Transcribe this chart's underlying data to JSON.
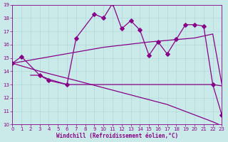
{
  "background_color": "#caeaea",
  "line_color": "#880088",
  "grid_color": "#b0d8d8",
  "xlabel": "Windchill (Refroidissement éolien,°C)",
  "tick_color": "#880088",
  "xlim": [
    0,
    23
  ],
  "ylim": [
    10,
    19
  ],
  "yticks": [
    10,
    11,
    12,
    13,
    14,
    15,
    16,
    17,
    18,
    19
  ],
  "xticks": [
    0,
    1,
    2,
    3,
    4,
    5,
    6,
    7,
    8,
    9,
    10,
    11,
    12,
    13,
    14,
    15,
    16,
    17,
    18,
    19,
    20,
    21,
    22,
    23
  ],
  "curve_main_x": [
    0,
    1,
    3,
    4,
    6,
    7,
    9,
    10,
    11,
    12,
    13,
    14,
    15,
    16,
    17,
    18,
    19,
    20,
    21,
    22,
    23
  ],
  "curve_main_y": [
    14.6,
    15.1,
    13.7,
    13.3,
    13.0,
    16.5,
    18.3,
    18.0,
    19.1,
    17.2,
    17.8,
    17.1,
    15.2,
    16.2,
    15.3,
    16.4,
    17.5,
    17.5,
    17.4,
    13.0,
    10.7
  ],
  "line_rise_x": [
    0,
    5,
    10,
    15,
    20,
    22,
    23
  ],
  "line_rise_y": [
    14.6,
    15.2,
    15.8,
    16.2,
    16.5,
    16.8,
    13.0
  ],
  "line_flat_x": [
    2,
    3,
    4,
    5,
    6,
    7,
    8,
    9,
    10,
    11,
    12,
    13,
    14,
    15,
    16,
    17,
    18,
    19,
    20,
    21,
    22,
    23
  ],
  "line_flat_y": [
    13.7,
    13.7,
    13.4,
    13.2,
    13.0,
    13.0,
    13.0,
    13.0,
    13.0,
    13.0,
    13.0,
    13.0,
    13.0,
    13.0,
    13.0,
    13.0,
    13.0,
    13.0,
    13.0,
    13.0,
    13.0,
    12.9
  ],
  "line_drop_x": [
    0,
    3,
    7,
    12,
    17,
    22,
    23
  ],
  "line_drop_y": [
    14.6,
    14.0,
    13.3,
    12.4,
    11.5,
    10.2,
    9.9
  ]
}
